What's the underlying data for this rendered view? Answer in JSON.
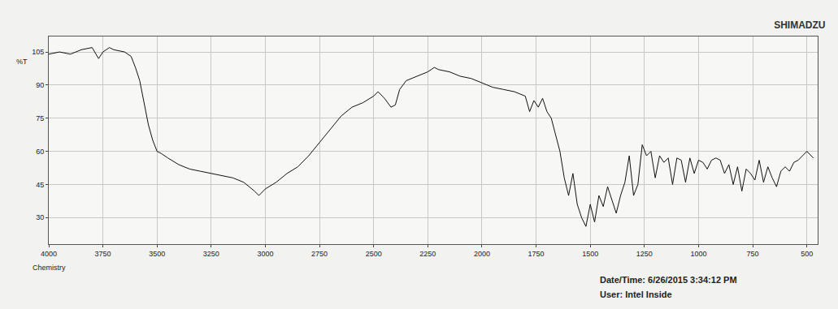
{
  "chart_data": {
    "type": "line",
    "title": "SHIMADZU",
    "y_label": "%T",
    "x_label": "Chemistry",
    "annotations": [
      "Date/Time: 6/26/2015 3:34:12 PM",
      "User: Intel Inside"
    ],
    "color": "#111111",
    "grid": true,
    "xlim": [
      4000,
      450
    ],
    "ylim": [
      18,
      112
    ],
    "xticks": [
      4000,
      3750,
      3500,
      3250,
      3000,
      2750,
      2500,
      2250,
      2000,
      1750,
      1500,
      1250,
      1000,
      750,
      500
    ],
    "yticks": [
      30,
      45,
      60,
      75,
      90,
      105
    ],
    "x": [
      4000,
      3950,
      3900,
      3850,
      3800,
      3770,
      3750,
      3720,
      3700,
      3650,
      3620,
      3600,
      3580,
      3560,
      3540,
      3520,
      3500,
      3480,
      3450,
      3400,
      3350,
      3300,
      3250,
      3200,
      3150,
      3100,
      3050,
      3030,
      3000,
      2950,
      2900,
      2850,
      2800,
      2750,
      2700,
      2650,
      2600,
      2550,
      2500,
      2480,
      2450,
      2420,
      2400,
      2380,
      2350,
      2300,
      2250,
      2220,
      2200,
      2150,
      2100,
      2050,
      2000,
      1950,
      1900,
      1850,
      1800,
      1780,
      1760,
      1740,
      1720,
      1700,
      1680,
      1660,
      1640,
      1620,
      1600,
      1580,
      1560,
      1540,
      1520,
      1500,
      1480,
      1460,
      1440,
      1420,
      1400,
      1380,
      1360,
      1340,
      1320,
      1300,
      1280,
      1260,
      1240,
      1220,
      1200,
      1180,
      1160,
      1140,
      1120,
      1100,
      1080,
      1060,
      1040,
      1020,
      1000,
      980,
      960,
      940,
      920,
      900,
      880,
      860,
      840,
      820,
      800,
      780,
      760,
      740,
      720,
      700,
      680,
      660,
      640,
      620,
      600,
      580,
      560,
      540,
      520,
      500,
      470
    ],
    "values": [
      104,
      105,
      104,
      106,
      107,
      102,
      105,
      107,
      106,
      105,
      103,
      98,
      92,
      82,
      72,
      65,
      60,
      59,
      57,
      54,
      52,
      51,
      50,
      49,
      48,
      46,
      42,
      40,
      43,
      46,
      50,
      53,
      58,
      64,
      70,
      76,
      80,
      82,
      85,
      87,
      84,
      80,
      81,
      88,
      92,
      94,
      96,
      98,
      97,
      96,
      94,
      93,
      91,
      89,
      88,
      87,
      85,
      78,
      83,
      80,
      84,
      78,
      75,
      68,
      60,
      48,
      40,
      50,
      36,
      30,
      26,
      36,
      28,
      40,
      35,
      44,
      38,
      32,
      40,
      46,
      58,
      40,
      45,
      63,
      58,
      60,
      48,
      58,
      55,
      57,
      45,
      57,
      56,
      46,
      57,
      50,
      56,
      55,
      52,
      56,
      57,
      56,
      50,
      54,
      45,
      53,
      42,
      52,
      50,
      47,
      56,
      46,
      53,
      48,
      44,
      51,
      53,
      51,
      55,
      56,
      58,
      60,
      57
    ]
  }
}
